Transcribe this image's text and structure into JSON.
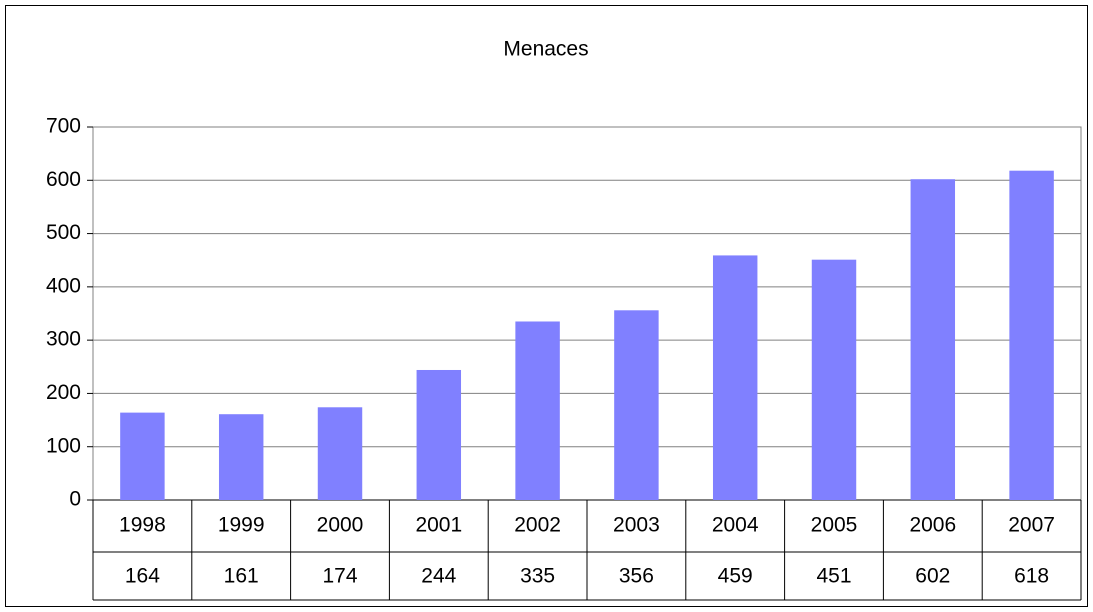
{
  "chart_data": {
    "type": "bar",
    "title": "Menaces",
    "categories": [
      "1998",
      "1999",
      "2000",
      "2001",
      "2002",
      "2003",
      "2004",
      "2005",
      "2006",
      "2007"
    ],
    "values": [
      164,
      161,
      174,
      244,
      335,
      356,
      459,
      451,
      602,
      618
    ],
    "color": "#8080ff",
    "ylim": [
      0,
      700
    ],
    "yticks": [
      0,
      100,
      200,
      300,
      400,
      500,
      600,
      700
    ],
    "grid": true
  }
}
